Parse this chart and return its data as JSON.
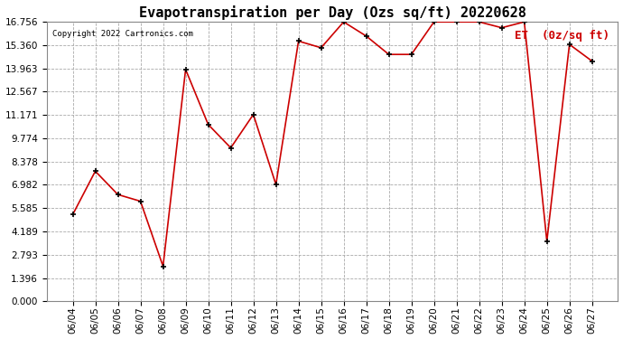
{
  "title": "Evapotranspiration per Day (Ozs sq/ft) 20220628",
  "copyright": "Copyright 2022 Cartronics.com",
  "legend_label": "ET  (0z/sq ft)",
  "dates": [
    "06/04",
    "06/05",
    "06/06",
    "06/07",
    "06/08",
    "06/09",
    "06/10",
    "06/11",
    "06/12",
    "06/13",
    "06/14",
    "06/15",
    "06/16",
    "06/17",
    "06/18",
    "06/19",
    "06/20",
    "06/21",
    "06/22",
    "06/23",
    "06/24",
    "06/25",
    "06/26",
    "06/27"
  ],
  "values": [
    5.2,
    7.8,
    6.4,
    6.0,
    2.1,
    13.9,
    10.6,
    9.2,
    11.2,
    7.0,
    15.6,
    15.2,
    16.75,
    15.9,
    14.8,
    14.8,
    16.75,
    16.75,
    16.75,
    16.4,
    16.75,
    3.6,
    15.4,
    14.4
  ],
  "line_color": "#cc0000",
  "marker_color": "#000000",
  "background_color": "#ffffff",
  "grid_color": "#aaaaaa",
  "ylim": [
    0.0,
    16.756
  ],
  "yticks": [
    0.0,
    1.396,
    2.793,
    4.189,
    5.585,
    6.982,
    8.378,
    9.774,
    11.171,
    12.567,
    13.963,
    15.36,
    16.756
  ],
  "title_fontsize": 11,
  "tick_fontsize": 7.5,
  "copyright_fontsize": 6.5,
  "legend_fontsize": 9
}
